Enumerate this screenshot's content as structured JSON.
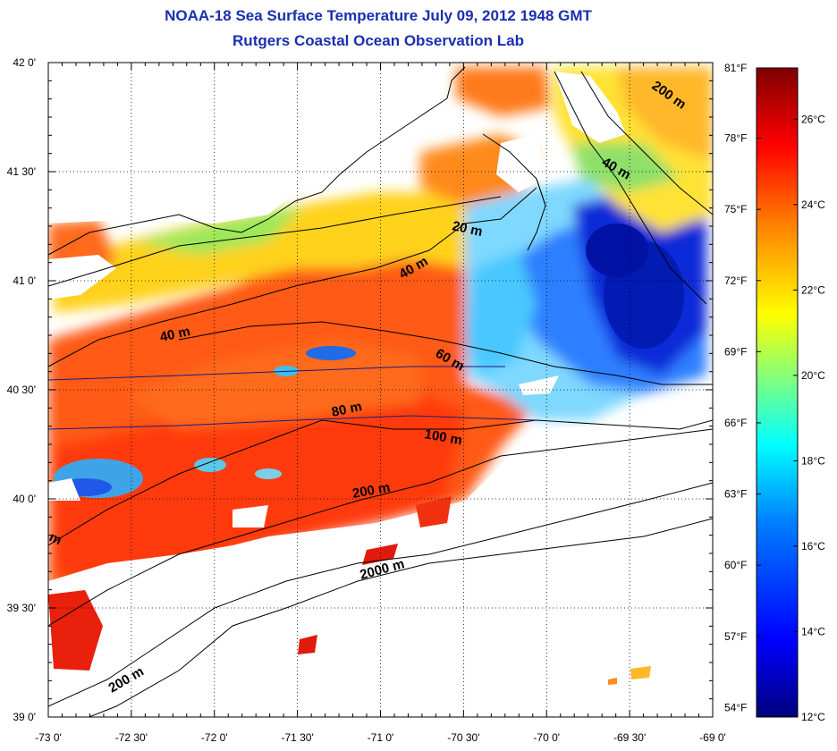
{
  "header": {
    "title_line1": "NOAA-18 Sea Surface Temperature July 09, 2012 1948 GMT",
    "title_line2": "Rutgers Coastal Ocean Observation Lab"
  },
  "map": {
    "lon_ticks": [
      "-73 0'",
      "-72 30'",
      "-72 0'",
      "-71 30'",
      "-71 0'",
      "-70 30'",
      "-70 0'",
      "-69 30'",
      "-69 0'"
    ],
    "lat_ticks": [
      "42 0'",
      "41 30'",
      "41 0'",
      "40 30'",
      "40 0'",
      "39 30'",
      "39 0'"
    ],
    "lon_range": [
      -73,
      -69
    ],
    "lat_range": [
      39,
      42
    ],
    "isobath_labels": [
      "200 m",
      "40 m",
      "20 m",
      "40 m",
      "40 m",
      "60 m",
      "80 m",
      "100 m",
      "200 m",
      "2000 m",
      "200 m",
      "m"
    ]
  },
  "colorbar": {
    "fahrenheit_labels": [
      "81°F",
      "78°F",
      "75°F",
      "72°F",
      "69°F",
      "66°F",
      "63°F",
      "60°F",
      "57°F",
      "54°F"
    ],
    "celsius_labels": [
      "26°C",
      "24°C",
      "22°C",
      "20°C",
      "18°C",
      "16°C",
      "14°C",
      "12°C"
    ],
    "celsius_range": [
      12,
      27.2
    ],
    "colors": [
      "#00007f",
      "#0000ff",
      "#007fff",
      "#00ffff",
      "#7fff7f",
      "#ffff00",
      "#ff7f00",
      "#ff0000",
      "#7f0000"
    ]
  }
}
